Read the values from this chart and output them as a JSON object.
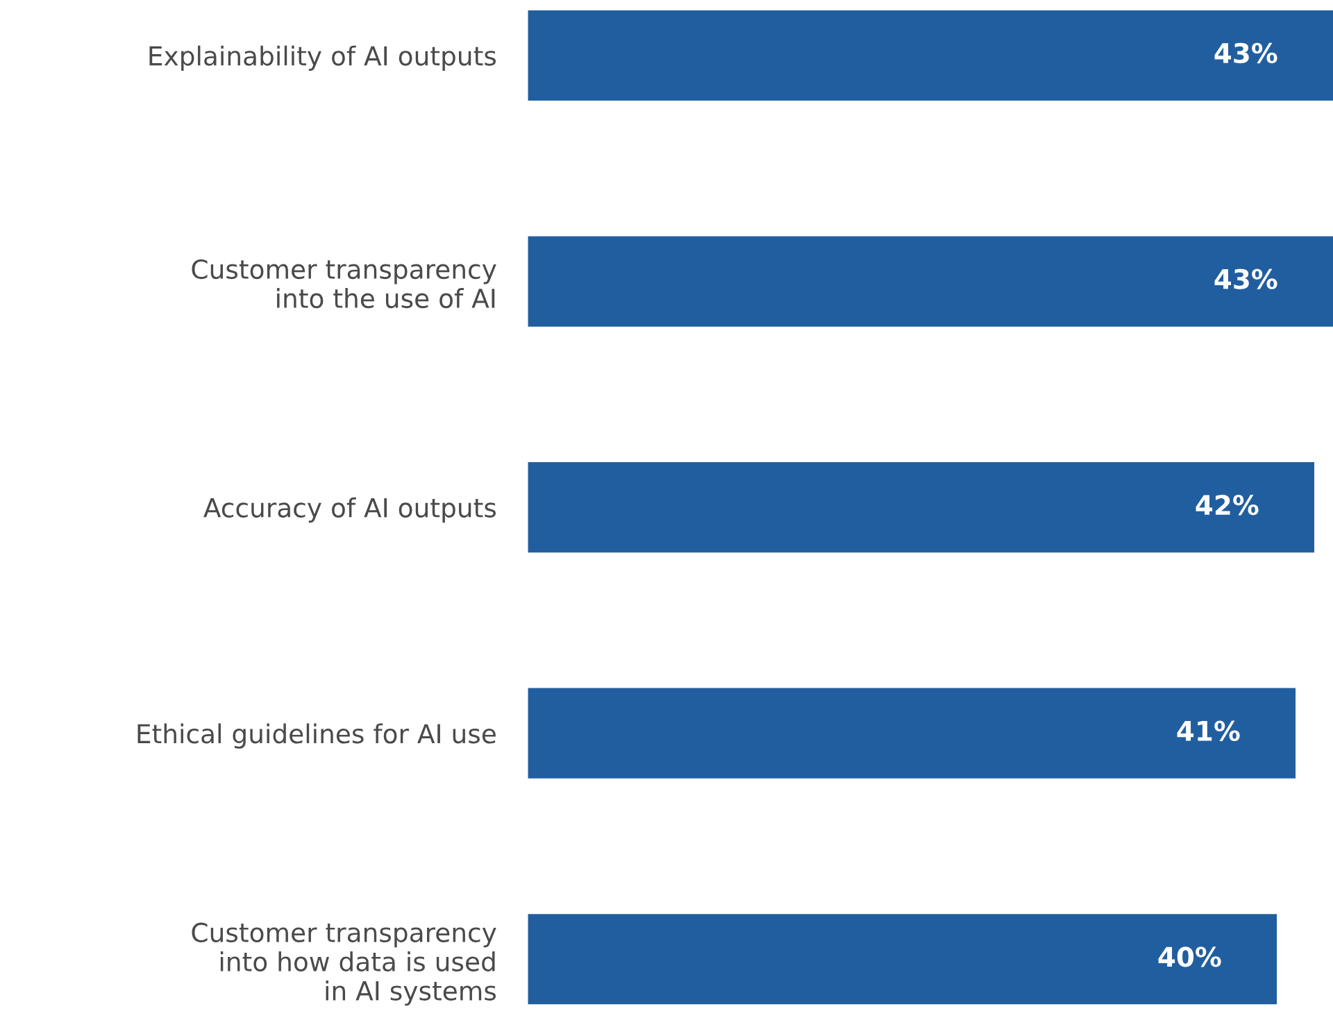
{
  "chart_data": {
    "type": "bar",
    "orientation": "horizontal",
    "categories": [
      "Explainability of AI outputs",
      "Customer transparency\ninto the use of AI",
      "Accuracy of AI outputs",
      "Ethical guidelines for AI use",
      "Customer transparency\ninto how data is used\nin AI systems"
    ],
    "values": [
      43,
      43,
      42,
      41,
      40
    ],
    "color": "#215e9f",
    "value_labels": [
      "43%",
      "43%",
      "42%",
      "41%",
      "40%"
    ],
    "grid": false,
    "legend": false
  }
}
